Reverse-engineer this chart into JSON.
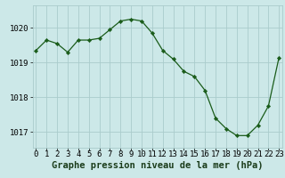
{
  "x": [
    0,
    1,
    2,
    3,
    4,
    5,
    6,
    7,
    8,
    9,
    10,
    11,
    12,
    13,
    14,
    15,
    16,
    17,
    18,
    19,
    20,
    21,
    22,
    23
  ],
  "y": [
    1019.35,
    1019.65,
    1019.55,
    1019.3,
    1019.65,
    1019.65,
    1019.7,
    1019.95,
    1020.2,
    1020.25,
    1020.2,
    1019.85,
    1019.35,
    1019.1,
    1018.75,
    1018.6,
    1018.2,
    1017.4,
    1017.1,
    1016.9,
    1016.9,
    1017.2,
    1017.75,
    1019.15
  ],
  "line_color": "#1a5c1a",
  "marker_color": "#1a5c1a",
  "bg_color": "#cce8e8",
  "grid_color": "#aacccc",
  "xlabel": "Graphe pression niveau de la mer (hPa)",
  "xlabel_fontsize": 7.5,
  "tick_fontsize": 6.5,
  "ylim": [
    1016.55,
    1020.65
  ],
  "yticks": [
    1017,
    1018,
    1019,
    1020
  ],
  "xlim": [
    -0.3,
    23.3
  ]
}
